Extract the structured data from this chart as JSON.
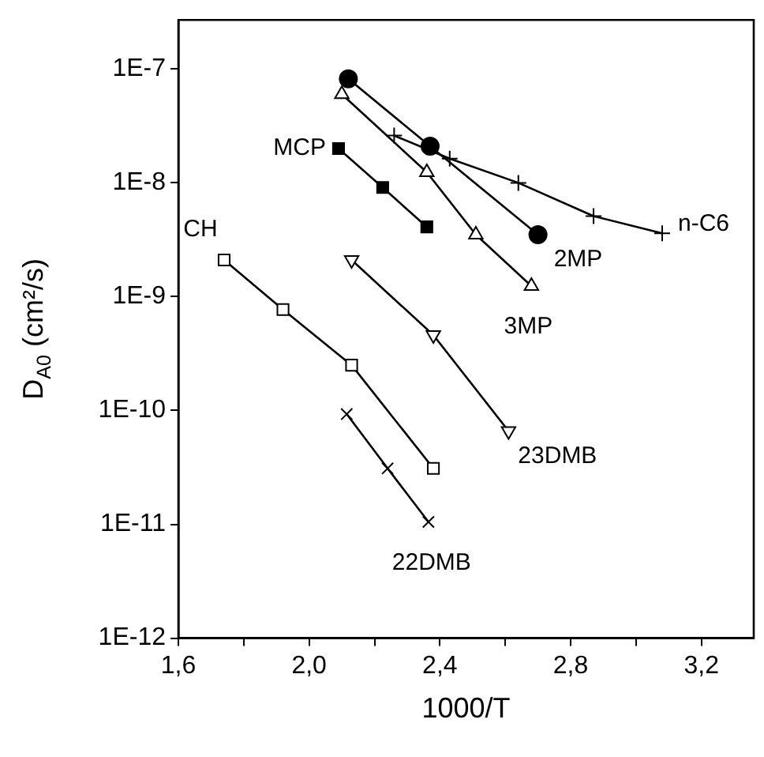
{
  "chart_data": {
    "type": "line",
    "xlabel": "1000/T",
    "ylabel": "D$_{A0}$ (cm²/s)",
    "log": "y",
    "grid": false,
    "legend": false,
    "line_style": "solid",
    "xlim": [
      1.6,
      3.36
    ],
    "xticks": [
      {
        "value": 1.6,
        "label": "1,6"
      },
      {
        "value": 1.8,
        "label": null
      },
      {
        "value": 2.0,
        "label": "2,0"
      },
      {
        "value": 2.2,
        "label": null
      },
      {
        "value": 2.4,
        "label": "2,4"
      },
      {
        "value": 2.6,
        "label": null
      },
      {
        "value": 2.8,
        "label": "2,8"
      },
      {
        "value": 3.0,
        "label": null
      },
      {
        "value": 3.2,
        "label": "3,2"
      }
    ],
    "ylim": [
      1e-12,
      2.7e-07
    ],
    "yticks": [
      {
        "value": 1e-12,
        "label": "1E-12"
      },
      {
        "value": 1e-11,
        "label": "1E-11"
      },
      {
        "value": 1e-10,
        "label": "1E-10"
      },
      {
        "value": 1e-09,
        "label": "1E-9"
      },
      {
        "value": 1e-08,
        "label": "1E-8"
      },
      {
        "value": 1e-07,
        "label": "1E-7"
      }
    ],
    "series": [
      {
        "name": "2MP",
        "color": "#000000",
        "marker": "circle",
        "x": [
          2.12,
          2.37,
          2.7
        ],
        "values": [
          8.2e-08,
          2.1e-08,
          3.5e-09
        ]
      },
      {
        "name": "3MP",
        "color": "#000000",
        "marker": "triangle",
        "x": [
          2.1,
          2.36,
          2.51,
          2.68
        ],
        "values": [
          6e-08,
          1.24e-08,
          3.5e-09,
          1.24e-09
        ]
      },
      {
        "name": "n-C6",
        "color": "#000000",
        "marker": "cross",
        "x": [
          2.26,
          2.43,
          2.64,
          2.87,
          3.08
        ],
        "values": [
          2.6e-08,
          1.63e-08,
          1e-08,
          5.1e-09,
          3.6e-09
        ]
      },
      {
        "name": "MCP",
        "color": "#000000",
        "marker": "square",
        "x": [
          2.09,
          2.225,
          2.36
        ],
        "values": [
          2e-08,
          9.1e-09,
          4.1e-09
        ]
      },
      {
        "name": "CH",
        "color": "#000000",
        "marker": "square",
        "x": [
          1.74,
          1.92,
          2.13,
          2.38
        ],
        "values": [
          2.1e-09,
          7.7e-10,
          2.5e-10,
          3.1e-11
        ]
      },
      {
        "name": "23DMB",
        "color": "#000000",
        "marker": "triangle",
        "x": [
          2.13,
          2.38,
          2.61
        ],
        "values": [
          2.1e-09,
          4.6e-10,
          6.6e-11
        ]
      },
      {
        "name": "22DMB",
        "color": "#000000",
        "marker": "cross",
        "x": [
          2.115,
          2.24,
          2.365
        ],
        "values": [
          9.3e-11,
          3.1e-11,
          1.05e-11
        ]
      }
    ]
  }
}
